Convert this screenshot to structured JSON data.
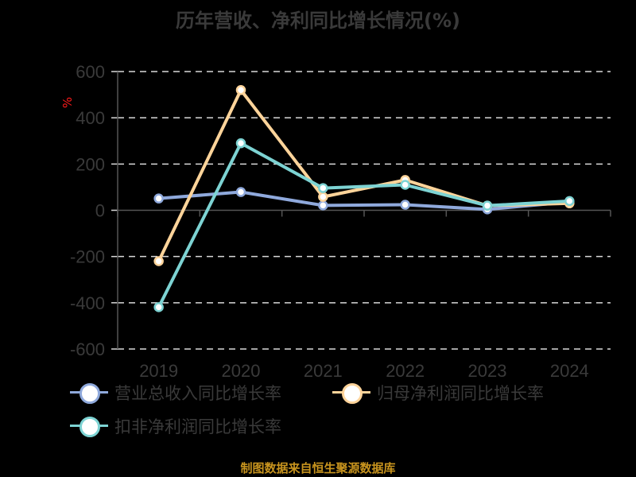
{
  "chart_data": {
    "type": "line",
    "title": "历年营收、净利同比增长情况(%)",
    "xlabel": "",
    "ylabel": "%",
    "categories": [
      "2019",
      "2020",
      "2021",
      "2022",
      "2023",
      "2024"
    ],
    "ylim": [
      -600,
      600
    ],
    "yticks": [
      600,
      400,
      200,
      0,
      -200,
      -400,
      -600
    ],
    "grid": true,
    "legend_position": "bottom",
    "series": [
      {
        "name": "营业总收入同比增长率",
        "color": "#8fa9dc",
        "values": [
          51,
          79,
          21,
          24,
          4,
          36
        ]
      },
      {
        "name": "归母净利润同比增长率",
        "color": "#ffd49a",
        "values": [
          -220,
          520,
          58,
          131,
          20,
          30
        ]
      },
      {
        "name": "扣非净利润同比增长率",
        "color": "#7dd3d3",
        "values": [
          -419,
          290,
          96,
          110,
          20,
          40
        ]
      }
    ]
  },
  "header": {
    "title": "历年营收、净利同比增长情况(%)"
  },
  "axis": {
    "unit_label": "%"
  },
  "legend": {
    "items": [
      {
        "label": "营业总收入同比增长率",
        "color": "#8fa9dc"
      },
      {
        "label": "归母净利润同比增长率",
        "color": "#ffd49a"
      },
      {
        "label": "扣非净利润同比增长率",
        "color": "#7dd3d3"
      }
    ]
  },
  "footer": {
    "source": "制图数据来自恒生聚源数据库"
  }
}
